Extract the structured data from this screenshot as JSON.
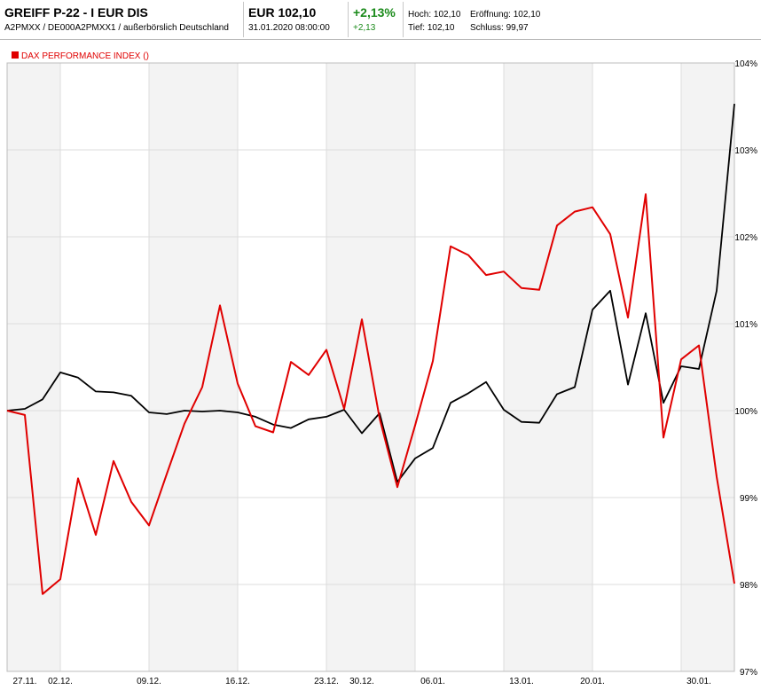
{
  "header": {
    "title": "GREIFF P-22 - I EUR DIS",
    "subtitle": "A2PMXX / DE000A2PMXX1 / außerbörslich Deutschland",
    "price": "EUR 102,10",
    "timestamp": "31.01.2020 08:00:00",
    "change_pct": "+2,13%",
    "change_abs": "+2,13",
    "high": "Hoch: 102,10",
    "open": "Eröffnung: 102,10",
    "low": "Tief: 102,10",
    "close": "Schluss: 99,97"
  },
  "legend": {
    "label": "DAX PERFORMANCE INDEX ()"
  },
  "chart_data": {
    "type": "line",
    "x_labels": [
      "27.11.",
      "02.12.",
      "09.12.",
      "16.12.",
      "23.12.",
      "30.12.",
      "06.01.",
      "13.01.",
      "20.01.",
      "30.01."
    ],
    "y_ticks": [
      "104%",
      "103%",
      "102%",
      "101%",
      "100%",
      "99%",
      "98%",
      "97%"
    ],
    "ylim": [
      97,
      104
    ],
    "colors": {
      "fund": "#000000",
      "dax": "#e00000",
      "band": "#f3f3f3"
    },
    "series": [
      {
        "key": "fund",
        "values": [
          100.0,
          100.02,
          100.13,
          100.44,
          100.38,
          100.22,
          100.21,
          100.17,
          99.98,
          99.96,
          100.0,
          99.99,
          100.0,
          99.98,
          99.93,
          99.84,
          99.8,
          99.9,
          99.93,
          100.01,
          99.74,
          99.97,
          99.18,
          99.45,
          99.57,
          100.09,
          100.2,
          100.33,
          100.01,
          99.87,
          99.86,
          100.19,
          100.27,
          101.16,
          101.38,
          100.3,
          101.12,
          100.09,
          100.51,
          100.48,
          101.38,
          103.53
        ]
      },
      {
        "key": "dax",
        "label": "DAX PERFORMANCE INDEX ()",
        "values": [
          100.0,
          99.95,
          97.89,
          98.06,
          99.22,
          98.57,
          99.42,
          98.95,
          98.68,
          99.27,
          99.85,
          100.27,
          101.21,
          100.31,
          99.82,
          99.75,
          100.56,
          100.41,
          100.7,
          100.02,
          101.05,
          99.91,
          99.12,
          99.83,
          100.57,
          101.89,
          101.79,
          101.56,
          101.6,
          101.41,
          101.39,
          102.13,
          102.29,
          102.34,
          102.03,
          101.07,
          102.49,
          99.69,
          100.59,
          100.75,
          99.24,
          98.01
        ]
      }
    ]
  }
}
